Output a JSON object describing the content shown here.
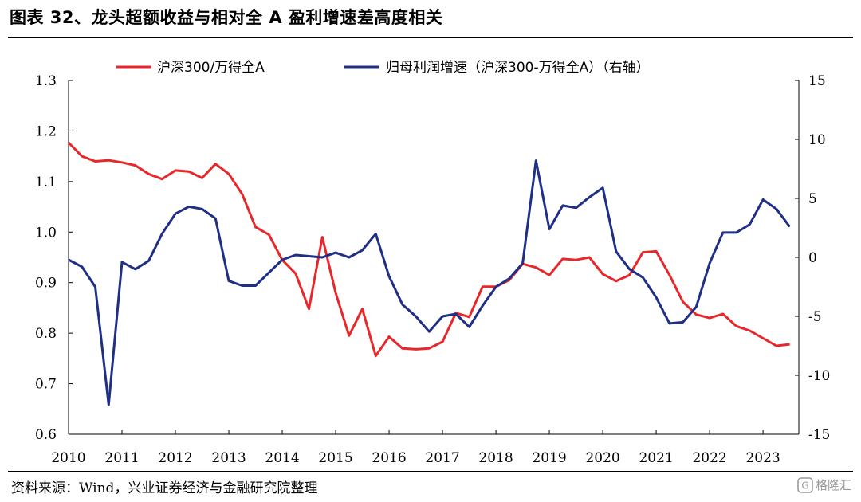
{
  "title": "图表 32、龙头超额收益与相对全 A 盈利增速差高度相关",
  "source": "资料来源：Wind，兴业证券经济与金融研究院整理",
  "watermark": "格隆汇",
  "chart_data": {
    "type": "line",
    "title": "图表 32、龙头超额收益与相对全 A 盈利增速差高度相关",
    "xlabel": "",
    "ylabel": "",
    "y2label": "",
    "x_ticks": [
      "2010",
      "2011",
      "2012",
      "2013",
      "2014",
      "2015",
      "2016",
      "2017",
      "2018",
      "2019",
      "2020",
      "2021",
      "2022",
      "2023"
    ],
    "x_range": [
      2010.0,
      2023.67
    ],
    "ylim": [
      0.6,
      1.3
    ],
    "y_ticks": [
      0.6,
      0.7,
      0.8,
      0.9,
      1.0,
      1.1,
      1.2,
      1.3
    ],
    "y2lim": [
      -15,
      15
    ],
    "y2_ticks": [
      -15,
      -10,
      -5,
      0,
      5,
      10,
      15
    ],
    "legend_position": "top",
    "grid": false,
    "series": [
      {
        "name": "沪深300/万得全A",
        "axis": "left",
        "color": "#e8272b",
        "x": [
          2010.0,
          2010.25,
          2010.5,
          2010.75,
          2011.0,
          2011.25,
          2011.5,
          2011.75,
          2012.0,
          2012.25,
          2012.5,
          2012.75,
          2013.0,
          2013.25,
          2013.5,
          2013.75,
          2014.0,
          2014.25,
          2014.5,
          2014.75,
          2015.0,
          2015.25,
          2015.5,
          2015.75,
          2016.0,
          2016.25,
          2016.5,
          2016.75,
          2017.0,
          2017.25,
          2017.5,
          2017.75,
          2018.0,
          2018.25,
          2018.5,
          2018.75,
          2019.0,
          2019.25,
          2019.5,
          2019.75,
          2020.0,
          2020.25,
          2020.5,
          2020.75,
          2021.0,
          2021.25,
          2021.5,
          2021.75,
          2022.0,
          2022.25,
          2022.5,
          2022.75,
          2023.0,
          2023.25,
          2023.5
        ],
        "values": [
          1.177,
          1.15,
          1.14,
          1.142,
          1.138,
          1.132,
          1.115,
          1.105,
          1.122,
          1.12,
          1.107,
          1.135,
          1.115,
          1.075,
          1.01,
          0.995,
          0.945,
          0.918,
          0.848,
          0.99,
          0.88,
          0.795,
          0.848,
          0.755,
          0.793,
          0.77,
          0.768,
          0.77,
          0.783,
          0.84,
          0.832,
          0.892,
          0.892,
          0.905,
          0.937,
          0.93,
          0.915,
          0.947,
          0.945,
          0.95,
          0.917,
          0.903,
          0.915,
          0.96,
          0.962,
          0.915,
          0.862,
          0.837,
          0.83,
          0.838,
          0.814,
          0.805,
          0.79,
          0.775,
          0.778
        ]
      },
      {
        "name": "归母利润增速（沪深300-万得全A）（右轴）",
        "axis": "right",
        "color": "#1f2f85",
        "x": [
          2010.0,
          2010.25,
          2010.5,
          2010.75,
          2011.0,
          2011.25,
          2011.5,
          2011.75,
          2012.0,
          2012.25,
          2012.5,
          2012.75,
          2013.0,
          2013.25,
          2013.5,
          2013.75,
          2014.0,
          2014.25,
          2014.5,
          2014.75,
          2015.0,
          2015.25,
          2015.5,
          2015.75,
          2016.0,
          2016.25,
          2016.5,
          2016.75,
          2017.0,
          2017.25,
          2017.5,
          2017.75,
          2018.0,
          2018.25,
          2018.5,
          2018.75,
          2019.0,
          2019.25,
          2019.5,
          2019.75,
          2020.0,
          2020.25,
          2020.5,
          2020.75,
          2021.0,
          2021.25,
          2021.5,
          2021.75,
          2022.0,
          2022.25,
          2022.5,
          2022.75,
          2023.0,
          2023.25,
          2023.5
        ],
        "values": [
          -0.2,
          -0.8,
          -2.5,
          -12.5,
          -0.4,
          -1.0,
          -0.3,
          2.0,
          3.7,
          4.3,
          4.1,
          3.3,
          -2.0,
          -2.4,
          -2.4,
          -1.3,
          -0.2,
          0.2,
          0.1,
          0.0,
          0.4,
          0.0,
          0.6,
          2.0,
          -1.6,
          -4.0,
          -5.0,
          -6.3,
          -5.0,
          -4.8,
          -5.9,
          -4.1,
          -2.5,
          -1.8,
          -0.5,
          8.2,
          2.4,
          4.4,
          4.2,
          5.1,
          5.9,
          0.5,
          -1.0,
          -1.7,
          -3.4,
          -5.6,
          -5.5,
          -4.2,
          -0.5,
          2.1,
          2.1,
          2.8,
          4.9,
          4.1,
          2.6
        ]
      }
    ]
  }
}
